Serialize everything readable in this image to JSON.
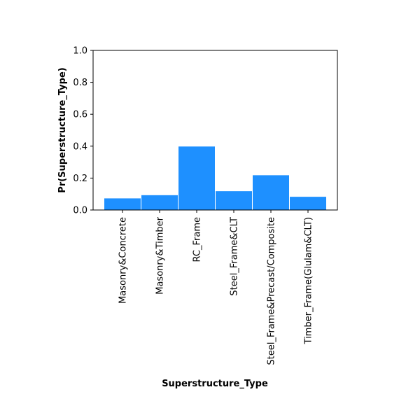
{
  "chart_data": {
    "type": "bar",
    "categories": [
      "Masonry&Concrete",
      "Masonry&Timber",
      "RC_Frame",
      "Steel_Frame&CLT",
      "Steel_Frame&Precast/Composite",
      "Timber_Frame(Glulam&CLT)"
    ],
    "values": [
      0.075,
      0.095,
      0.4,
      0.12,
      0.22,
      0.085
    ],
    "xlabel": "Superstructure_Type",
    "ylabel": "Pr(Superstructure_Type)",
    "ylim": [
      0,
      1.0
    ],
    "yticks": [
      "0.0",
      "0.2",
      "0.4",
      "0.6",
      "0.8",
      "1.0"
    ],
    "bar_color": "#1e90ff",
    "grid": false
  }
}
